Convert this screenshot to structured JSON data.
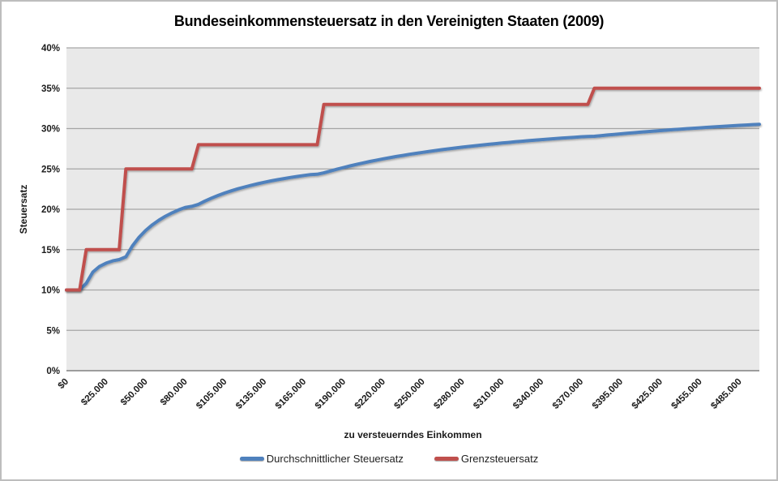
{
  "figure": {
    "title": "Bundeseinkommensteuersatz in den Vereinigten Staaten (2009)"
  },
  "chart_data": {
    "type": "line",
    "title": "Bundeseinkommensteuersatz in den Vereinigten Staaten (2009)",
    "xlabel": "zu versteuerndes Einkommen",
    "ylabel": "Steuersatz",
    "ylim": [
      0,
      40
    ],
    "grid": true,
    "legend_position": "bottom",
    "plot_background": "#E9E9E9",
    "gridline_color": "#A6A6A6",
    "axis_line_color": "#808080",
    "yticks": [
      "0%",
      "5%",
      "10%",
      "15%",
      "20%",
      "25%",
      "30%",
      "35%",
      "40%"
    ],
    "ytick_values": [
      0,
      5,
      10,
      15,
      20,
      25,
      30,
      35,
      40
    ],
    "xtick_labels": [
      "$0",
      "$25.000",
      "$50.000",
      "$80.000",
      "$105.000",
      "$135.000",
      "$165.000",
      "$190.000",
      "$220.000",
      "$250.000",
      "$280.000",
      "$310.000",
      "$340.000",
      "$370.000",
      "$395.000",
      "$425.000",
      "$455.000",
      "$485.000"
    ],
    "x_sampling": {
      "start": 0,
      "step": 5000,
      "end": 500000,
      "extra_points": [
        8350,
        33950,
        82250,
        171550,
        372950
      ],
      "label_every": 6
    },
    "tax_brackets_2009": [
      {
        "threshold": 0,
        "rate": 10
      },
      {
        "threshold": 8350,
        "rate": 15
      },
      {
        "threshold": 33950,
        "rate": 25
      },
      {
        "threshold": 82250,
        "rate": 28
      },
      {
        "threshold": 171550,
        "rate": 33
      },
      {
        "threshold": 372950,
        "rate": 35
      }
    ],
    "series": [
      {
        "name": "Durchschnittlicher Steuersatz",
        "color": "#4F81BD",
        "role": "average_tax_rate",
        "values_at_ticks": [
          10.0,
          13.3,
          17.4,
          20.2,
          22.0,
          23.4,
          24.2,
          25.2,
          26.3,
          27.1,
          27.7,
          28.2,
          28.6,
          29.0,
          29.4,
          29.7,
          30.1,
          30.4
        ]
      },
      {
        "name": "Grenzsteuersatz",
        "color": "#C0504D",
        "role": "marginal_tax_rate",
        "step_rates": [
          10,
          15,
          25,
          28,
          33,
          35
        ],
        "step_boundaries": [
          8350,
          33950,
          82250,
          171550,
          372950
        ]
      }
    ]
  }
}
